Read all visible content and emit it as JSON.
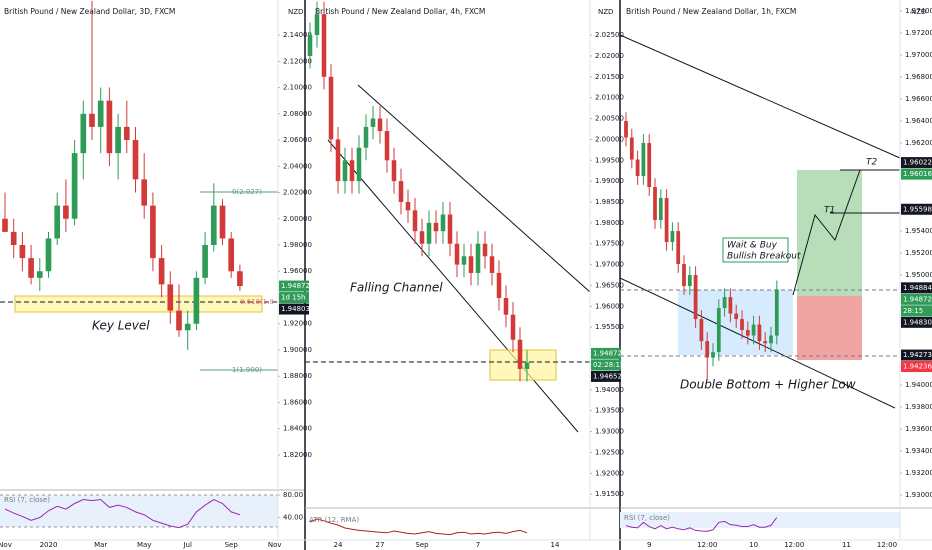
{
  "chart_data": [
    {
      "type": "candlestick",
      "title": "British Pound / New Zealand Dollar, 3D, FXCM",
      "currency": "NZD",
      "up_color": "#2e9b57",
      "down_color": "#d23a3a",
      "categories": [
        "Nov",
        null,
        null,
        null,
        null,
        "2020",
        null,
        null,
        null,
        null,
        null,
        "Mar",
        null,
        null,
        null,
        null,
        "May",
        null,
        null,
        null,
        null,
        "Jul",
        null,
        null,
        null,
        null,
        "Sep",
        null,
        null,
        null,
        null,
        "Nov"
      ],
      "open": [
        2.0,
        1.99,
        1.98,
        1.97,
        1.955,
        1.96,
        1.985,
        2.01,
        2.0,
        2.05,
        2.08,
        2.07,
        2.09,
        2.05,
        2.07,
        2.06,
        2.03,
        2.01,
        1.97,
        1.95,
        1.93,
        1.915,
        1.92,
        1.955,
        1.98,
        2.01,
        1.985,
        1.96,
        null,
        null,
        null,
        null
      ],
      "high": [
        2.02,
        2.0,
        1.99,
        1.98,
        1.97,
        1.99,
        2.02,
        2.03,
        2.06,
        2.09,
        2.166,
        2.1,
        2.1,
        2.08,
        2.09,
        2.07,
        2.05,
        2.02,
        1.98,
        1.96,
        1.95,
        1.93,
        1.96,
        1.99,
        2.027,
        2.015,
        1.99,
        1.965,
        null,
        null,
        null,
        null
      ],
      "low": [
        1.99,
        1.97,
        1.96,
        1.95,
        1.945,
        1.955,
        1.98,
        1.99,
        1.995,
        2.03,
        2.06,
        2.05,
        2.04,
        2.03,
        2.05,
        2.02,
        2.0,
        1.96,
        1.94,
        1.92,
        1.91,
        1.9,
        1.915,
        1.95,
        1.975,
        1.98,
        1.955,
        1.945,
        null,
        null,
        null,
        null
      ],
      "close": [
        1.99,
        1.98,
        1.97,
        1.955,
        1.96,
        1.985,
        2.01,
        2.0,
        2.05,
        2.08,
        2.07,
        2.09,
        2.05,
        2.07,
        2.06,
        2.03,
        2.01,
        1.97,
        1.95,
        1.93,
        1.915,
        1.92,
        1.955,
        1.98,
        2.01,
        1.985,
        1.96,
        1.9487,
        null,
        null,
        null,
        null
      ],
      "ylim": [
        1.7933,
        2.1667
      ],
      "yticks": [
        {
          "value": 2.14,
          "label": "2.14000"
        },
        {
          "value": 2.12,
          "label": "2.12000"
        },
        {
          "value": 2.1,
          "label": "2.10000"
        },
        {
          "value": 2.08,
          "label": "2.08000"
        },
        {
          "value": 2.06,
          "label": "2.06000"
        },
        {
          "value": 2.04,
          "label": "2.04000"
        },
        {
          "value": 2.02,
          "label": "2.02000"
        },
        {
          "value": 2.0,
          "label": "2.00000"
        },
        {
          "value": 1.98,
          "label": "1.98000"
        },
        {
          "value": 1.96,
          "label": "1.96000"
        },
        {
          "value": 1.92,
          "label": "1.92000"
        },
        {
          "value": 1.9,
          "label": "1.90000"
        },
        {
          "value": 1.88,
          "label": "1.88000"
        },
        {
          "value": 1.86,
          "label": "1.86000"
        },
        {
          "value": 1.84,
          "label": "1.84000"
        },
        {
          "value": 1.82,
          "label": "1.82000"
        }
      ],
      "price_tags": [
        {
          "value": 1.94872,
          "color": "#2e9b57"
        },
        {
          "value": 1.94803,
          "color": "#131722"
        }
      ],
      "countdown": "1d 15h",
      "annotations": [
        "Key Level",
        "0(2.027)",
        "0.618(1.9",
        "1(1.900)"
      ],
      "indicator": {
        "name": "RSI (7, close)",
        "color": "#9c27b0",
        "ylim": [
          0,
          89
        ],
        "yticks": [
          {
            "value": 80,
            "label": "80.00"
          },
          {
            "value": 40,
            "label": "40.00"
          }
        ],
        "values": [
          55,
          48,
          42,
          35,
          40,
          52,
          60,
          55,
          65,
          72,
          70,
          72,
          58,
          62,
          58,
          50,
          45,
          35,
          30,
          25,
          22,
          28,
          50,
          62,
          72,
          65,
          50,
          45,
          null,
          null,
          null,
          null
        ]
      }
    },
    {
      "type": "candlestick",
      "title": "British Pound / New Zealand Dollar, 4h, FXCM",
      "currency": "NZD",
      "up_color": "#2e9b57",
      "down_color": "#d23a3a",
      "categories": [
        null,
        null,
        null,
        null,
        "24",
        null,
        null,
        null,
        null,
        null,
        "27",
        null,
        null,
        null,
        null,
        null,
        "Sep",
        null,
        null,
        null,
        null,
        null,
        null,
        null,
        "7",
        null,
        null,
        null,
        null,
        null,
        null,
        null,
        null,
        null,
        null,
        "14"
      ],
      "open": [
        2.02,
        2.025,
        2.03,
        2.015,
        2.0,
        1.99,
        1.995,
        1.99,
        1.998,
        2.003,
        2.005,
        2.002,
        1.995,
        1.99,
        1.985,
        1.983,
        1.978,
        1.975,
        1.98,
        1.978,
        1.982,
        1.975,
        1.97,
        1.972,
        1.968,
        1.975,
        1.972,
        1.968,
        1.962,
        1.958,
        1.952,
        1.945,
        null,
        null,
        null,
        null
      ],
      "high": [
        2.028,
        2.033,
        2.033,
        2.018,
        2.003,
        1.998,
        1.998,
        2.001,
        2.006,
        2.008,
        2.008,
        2.005,
        1.998,
        1.993,
        1.988,
        1.986,
        1.981,
        1.983,
        1.983,
        1.985,
        1.985,
        1.978,
        1.975,
        1.975,
        1.978,
        1.978,
        1.975,
        1.971,
        1.965,
        1.961,
        1.955,
        1.9495,
        null,
        null,
        null,
        null
      ],
      "low": [
        2.017,
        2.022,
        2.012,
        1.997,
        1.987,
        1.987,
        1.987,
        1.987,
        1.995,
        2.0,
        1.999,
        1.992,
        1.987,
        1.982,
        1.98,
        1.975,
        1.972,
        1.972,
        1.975,
        1.975,
        1.972,
        1.967,
        1.967,
        1.965,
        1.965,
        1.969,
        1.965,
        1.959,
        1.955,
        1.949,
        1.942,
        1.942,
        null,
        null,
        null,
        null
      ],
      "close": [
        2.025,
        2.03,
        2.015,
        2.0,
        1.99,
        1.995,
        1.99,
        1.998,
        2.003,
        2.005,
        2.002,
        1.995,
        1.99,
        1.985,
        1.983,
        1.978,
        1.975,
        1.98,
        1.978,
        1.982,
        1.975,
        1.97,
        1.972,
        1.968,
        1.975,
        1.972,
        1.968,
        1.962,
        1.958,
        1.952,
        1.945,
        1.9465,
        null,
        null,
        null,
        null
      ],
      "ylim": [
        1.9124,
        2.0334
      ],
      "yticks": [
        {
          "value": 2.025,
          "label": "2.02500"
        },
        {
          "value": 2.02,
          "label": "2.02000"
        },
        {
          "value": 2.015,
          "label": "2.01500"
        },
        {
          "value": 2.01,
          "label": "2.01000"
        },
        {
          "value": 2.005,
          "label": "2.00500"
        },
        {
          "value": 2.0,
          "label": "2.00000"
        },
        {
          "value": 1.995,
          "label": "1.99500"
        },
        {
          "value": 1.99,
          "label": "1.99000"
        },
        {
          "value": 1.985,
          "label": "1.98500"
        },
        {
          "value": 1.98,
          "label": "1.98000"
        },
        {
          "value": 1.975,
          "label": "1.97500"
        },
        {
          "value": 1.97,
          "label": "1.97000"
        },
        {
          "value": 1.965,
          "label": "1.96500"
        },
        {
          "value": 1.96,
          "label": "1.96000"
        },
        {
          "value": 1.955,
          "label": "1.95500"
        },
        {
          "value": 1.94,
          "label": "1.94000"
        },
        {
          "value": 1.935,
          "label": "1.93500"
        },
        {
          "value": 1.93,
          "label": "1.93000"
        },
        {
          "value": 1.925,
          "label": "1.92500"
        },
        {
          "value": 1.92,
          "label": "1.92000"
        },
        {
          "value": 1.915,
          "label": "1.91500"
        }
      ],
      "price_tags": [
        {
          "value": 1.94872,
          "color": "#2e9b57"
        },
        {
          "value": 1.94652,
          "color": "#131722"
        }
      ],
      "countdown": "02:28:15",
      "annotations": [
        "Falling Channel"
      ],
      "indicator": {
        "name": "ATR (12, RMA)",
        "color": "#b71c1c",
        "ylim": [
          0.003,
          0.008
        ],
        "yticks": [],
        "values": [
          0.006,
          0.0065,
          0.0062,
          0.0058,
          0.0055,
          0.005,
          0.0048,
          0.0046,
          0.0045,
          0.0044,
          0.0043,
          0.0042,
          0.0045,
          0.0043,
          0.0041,
          0.004,
          0.0042,
          0.0044,
          0.0041,
          0.004,
          0.0039,
          0.0042,
          0.0043,
          0.004,
          0.0041,
          0.004,
          0.0042,
          0.0043,
          0.0041,
          0.0044,
          0.0046,
          0.0042,
          null,
          null,
          null,
          null
        ]
      }
    },
    {
      "type": "candlestick",
      "title": "British Pound / New Zealand Dollar, 1h, FXCM",
      "currency": "NZD",
      "up_color": "#2e9b57",
      "down_color": "#d23a3a",
      "categories": [
        null,
        null,
        null,
        null,
        "9",
        null,
        null,
        null,
        null,
        null,
        null,
        null,
        null,
        null,
        "12:00",
        null,
        null,
        null,
        null,
        null,
        null,
        null,
        "10",
        null,
        null,
        null,
        null,
        null,
        null,
        "12:00",
        null,
        null,
        null,
        null,
        null,
        null,
        null,
        null,
        "11",
        null,
        null,
        null,
        null,
        null,
        null,
        "12:00"
      ],
      "open": [
        1.964,
        1.9625,
        1.9605,
        1.959,
        1.962,
        1.958,
        1.955,
        1.957,
        1.953,
        1.954,
        1.951,
        1.949,
        1.95,
        1.946,
        1.944,
        1.9425,
        1.943,
        1.947,
        1.948,
        1.9465,
        1.946,
        1.945,
        1.9445,
        1.9455,
        1.944,
        1.9438,
        1.9445,
        null,
        null,
        null,
        null,
        null,
        null,
        null,
        null,
        null,
        null,
        null,
        null,
        null,
        null,
        null,
        null,
        null,
        null,
        null
      ],
      "high": [
        1.9648,
        1.9633,
        1.9613,
        1.9628,
        1.9628,
        1.9588,
        1.9578,
        1.9578,
        1.9548,
        1.9548,
        1.9518,
        1.9508,
        1.9508,
        1.9468,
        1.9448,
        1.9438,
        1.9478,
        1.9488,
        1.9488,
        1.9473,
        1.9468,
        1.9458,
        1.9463,
        1.9463,
        1.9448,
        1.9453,
        1.9495,
        null,
        null,
        null,
        null,
        null,
        null,
        null,
        null,
        null,
        null,
        null,
        null,
        null,
        null,
        null,
        null,
        null,
        null,
        null
      ],
      "low": [
        1.9617,
        1.9597,
        1.9582,
        1.9582,
        1.9572,
        1.9542,
        1.9542,
        1.9522,
        1.9522,
        1.9502,
        1.9482,
        1.9482,
        1.9452,
        1.9432,
        1.9405,
        1.9417,
        1.9422,
        1.9462,
        1.9457,
        1.9452,
        1.9442,
        1.9437,
        1.9437,
        1.9432,
        1.943,
        1.943,
        1.9437,
        null,
        null,
        null,
        null,
        null,
        null,
        null,
        null,
        null,
        null,
        null,
        null,
        null,
        null,
        null,
        null,
        null,
        null,
        null
      ],
      "close": [
        1.9625,
        1.9605,
        1.959,
        1.962,
        1.958,
        1.955,
        1.957,
        1.953,
        1.954,
        1.951,
        1.949,
        1.95,
        1.946,
        1.944,
        1.9425,
        1.943,
        1.947,
        1.948,
        1.9465,
        1.946,
        1.945,
        1.9445,
        1.9455,
        1.944,
        1.9438,
        1.9445,
        1.9487,
        null,
        null,
        null,
        null,
        null,
        null,
        null,
        null,
        null,
        null,
        null,
        null,
        null,
        null,
        null,
        null,
        null,
        null,
        null
      ],
      "ylim": [
        1.9291,
        1.975
      ],
      "yticks": [
        {
          "value": 1.974,
          "label": "1.97400"
        },
        {
          "value": 1.972,
          "label": "1.97200"
        },
        {
          "value": 1.97,
          "label": "1.97000"
        },
        {
          "value": 1.968,
          "label": "1.96800"
        },
        {
          "value": 1.966,
          "label": "1.96600"
        },
        {
          "value": 1.964,
          "label": "1.96400"
        },
        {
          "value": 1.962,
          "label": "1.96200"
        },
        {
          "value": 1.954,
          "label": "1.95400"
        },
        {
          "value": 1.952,
          "label": "1.95200"
        },
        {
          "value": 1.95,
          "label": "1.95000"
        },
        {
          "value": 1.94,
          "label": "1.94000"
        },
        {
          "value": 1.938,
          "label": "1.93800"
        },
        {
          "value": 1.936,
          "label": "1.93600"
        },
        {
          "value": 1.934,
          "label": "1.93400"
        },
        {
          "value": 1.932,
          "label": "1.93200"
        },
        {
          "value": 1.93,
          "label": "1.93000"
        }
      ],
      "price_tags": [
        {
          "value": 1.96022,
          "color": "#131722"
        },
        {
          "value": 1.96016,
          "color": "#2e9b57"
        },
        {
          "value": 1.95598,
          "color": "#131722"
        },
        {
          "value": 1.94884,
          "color": "#131722"
        },
        {
          "value": 1.94872,
          "color": "#2e9b57"
        },
        {
          "value": 1.9483,
          "label": "1.94830",
          "color": "#131722"
        },
        {
          "value": 1.94273,
          "color": "#131722"
        },
        {
          "value": 1.94236,
          "color": "#f23645"
        }
      ],
      "countdown": "28:15",
      "annotations": [
        "Wait & Buy",
        "Bullish Breakout",
        "Double Bottom + Higher Low",
        "T1",
        "T2"
      ],
      "indicator": {
        "name": "RSI (7, close)",
        "color": "#9c27b0",
        "ylim": [
          0,
          100
        ],
        "yticks": [],
        "values": [
          45,
          40,
          38,
          55,
          42,
          35,
          45,
          35,
          40,
          35,
          32,
          38,
          30,
          28,
          27,
          32,
          55,
          58,
          48,
          46,
          42,
          42,
          48,
          40,
          40,
          46,
          70,
          null,
          null,
          null,
          null,
          null,
          null,
          null,
          null,
          null,
          null,
          null,
          null,
          null,
          null,
          null,
          null,
          null,
          null,
          null
        ]
      }
    }
  ]
}
